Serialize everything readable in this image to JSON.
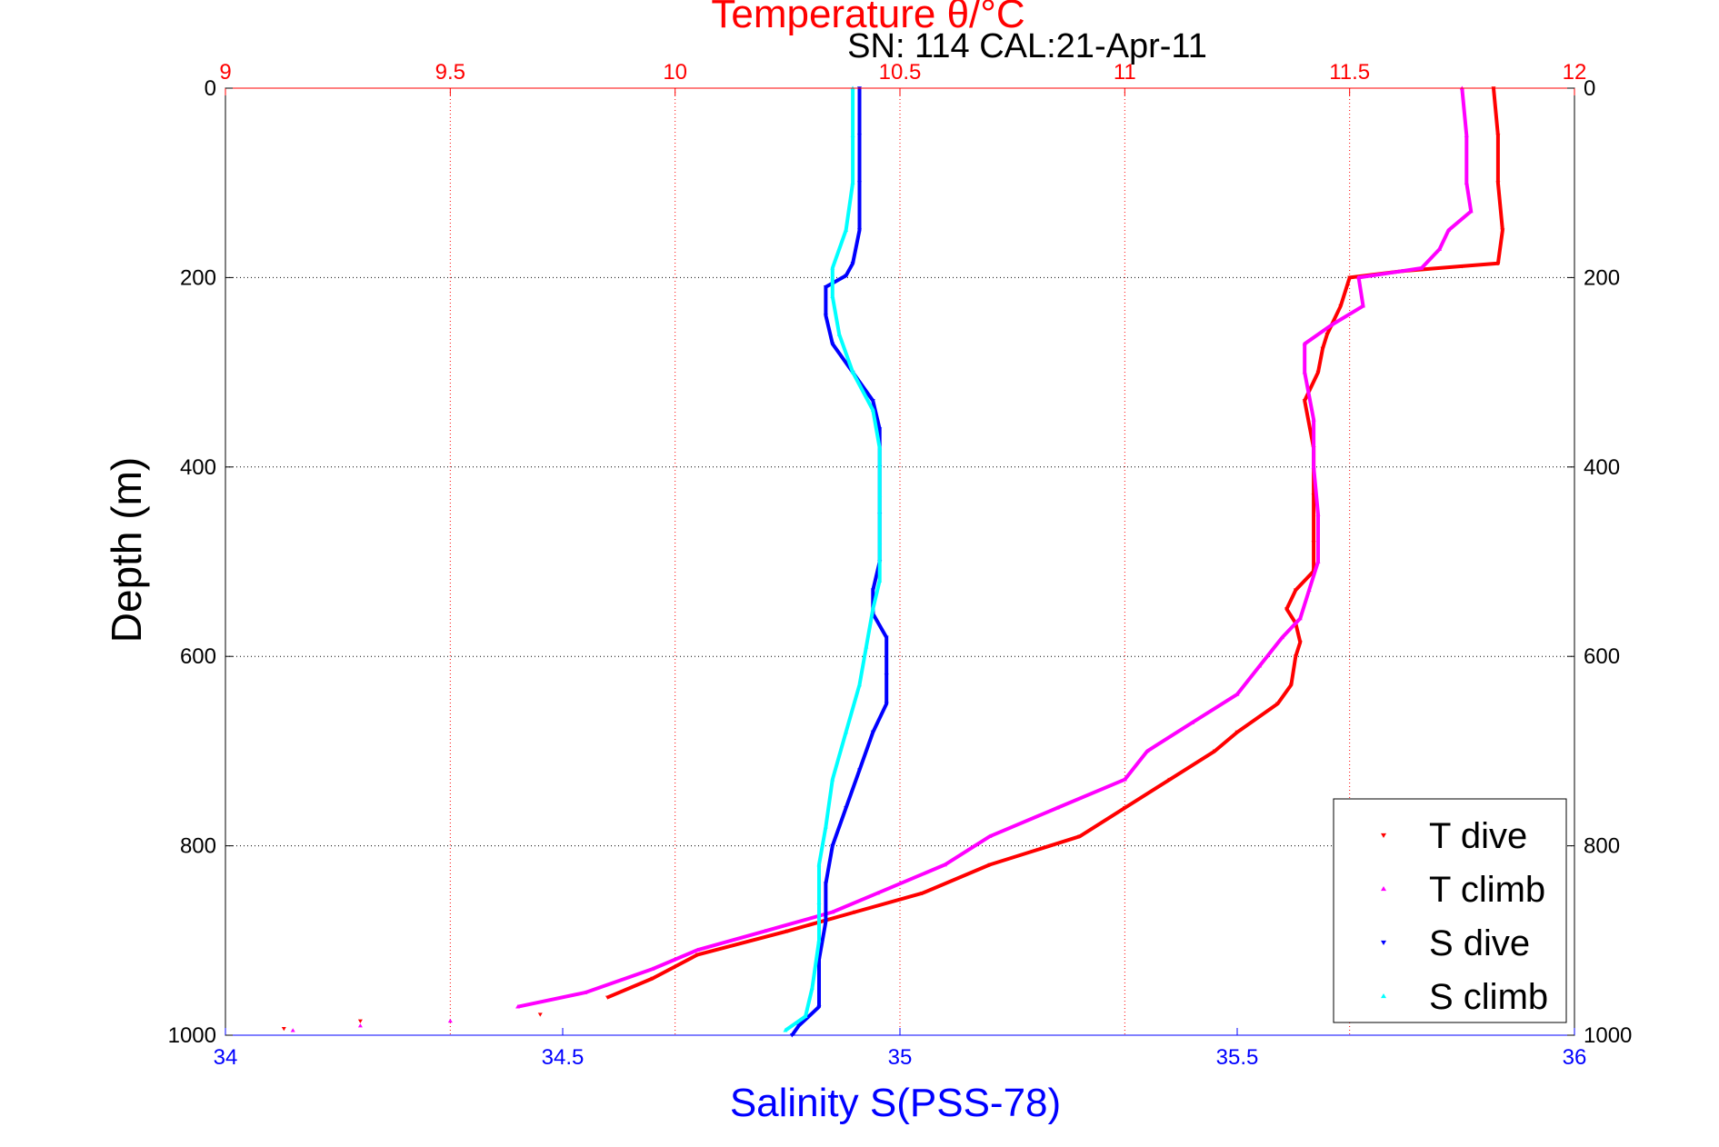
{
  "chart_data": {
    "type": "scatter",
    "title": "Temperature θ/°C",
    "subtitle": "SN: 114  CAL:21-Apr-11",
    "ylabel": "Depth (m)",
    "xlabel_bottom": "Salinity S(PSS-78)",
    "top_axis": {
      "label": "Temperature θ/°C",
      "range": [
        9,
        12
      ],
      "ticks": [
        "9",
        "9.5",
        "10",
        "10.5",
        "11",
        "11.5",
        "12"
      ],
      "color": "#ff0000"
    },
    "bottom_axis": {
      "label": "Salinity S(PSS-78)",
      "range": [
        34,
        36
      ],
      "ticks": [
        "34",
        "34.5",
        "35",
        "35.5",
        "36"
      ],
      "color": "#0000ff"
    },
    "y_axis": {
      "range": [
        0,
        1000
      ],
      "reversed": true,
      "ticks": [
        "0",
        "200",
        "400",
        "600",
        "800",
        "1000"
      ]
    },
    "grid": true,
    "legend_position": "bottom-right",
    "series": [
      {
        "name": "T dive",
        "axis": "top",
        "color": "#ff0000",
        "marker": "triangle-down",
        "points": [
          [
            11.82,
            0
          ],
          [
            11.83,
            50
          ],
          [
            11.83,
            100
          ],
          [
            11.84,
            150
          ],
          [
            11.83,
            185
          ],
          [
            11.75,
            188
          ],
          [
            11.62,
            193
          ],
          [
            11.5,
            200
          ],
          [
            11.48,
            230
          ],
          [
            11.45,
            260
          ],
          [
            11.44,
            275
          ],
          [
            11.43,
            300
          ],
          [
            11.41,
            320
          ],
          [
            11.4,
            330
          ],
          [
            11.42,
            380
          ],
          [
            11.42,
            430
          ],
          [
            11.42,
            480
          ],
          [
            11.42,
            510
          ],
          [
            11.38,
            530
          ],
          [
            11.36,
            550
          ],
          [
            11.38,
            565
          ],
          [
            11.39,
            585
          ],
          [
            11.38,
            600
          ],
          [
            11.37,
            630
          ],
          [
            11.34,
            650
          ],
          [
            11.25,
            680
          ],
          [
            11.2,
            700
          ],
          [
            11.1,
            730
          ],
          [
            11.0,
            760
          ],
          [
            10.9,
            790
          ],
          [
            10.7,
            820
          ],
          [
            10.55,
            850
          ],
          [
            10.4,
            870
          ],
          [
            10.25,
            890
          ],
          [
            10.05,
            915
          ],
          [
            9.95,
            940
          ],
          [
            9.85,
            960
          ],
          [
            9.7,
            978
          ],
          [
            9.3,
            985
          ],
          [
            9.13,
            993
          ]
        ]
      },
      {
        "name": "T climb",
        "axis": "top",
        "color": "#ff00ff",
        "marker": "triangle-up",
        "points": [
          [
            11.75,
            0
          ],
          [
            11.76,
            50
          ],
          [
            11.76,
            100
          ],
          [
            11.77,
            130
          ],
          [
            11.72,
            150
          ],
          [
            11.7,
            170
          ],
          [
            11.66,
            190
          ],
          [
            11.52,
            200
          ],
          [
            11.53,
            230
          ],
          [
            11.46,
            250
          ],
          [
            11.4,
            270
          ],
          [
            11.4,
            300
          ],
          [
            11.42,
            350
          ],
          [
            11.42,
            400
          ],
          [
            11.43,
            450
          ],
          [
            11.43,
            500
          ],
          [
            11.41,
            530
          ],
          [
            11.39,
            560
          ],
          [
            11.35,
            580
          ],
          [
            11.3,
            610
          ],
          [
            11.25,
            640
          ],
          [
            11.15,
            670
          ],
          [
            11.05,
            700
          ],
          [
            11.0,
            730
          ],
          [
            10.85,
            760
          ],
          [
            10.7,
            790
          ],
          [
            10.6,
            820
          ],
          [
            10.45,
            850
          ],
          [
            10.35,
            870
          ],
          [
            10.2,
            890
          ],
          [
            10.05,
            910
          ],
          [
            9.95,
            930
          ],
          [
            9.8,
            955
          ],
          [
            9.65,
            970
          ],
          [
            9.5,
            985
          ],
          [
            9.3,
            990
          ],
          [
            9.15,
            995
          ]
        ]
      },
      {
        "name": "S dive",
        "axis": "bottom",
        "color": "#0000ff",
        "marker": "triangle-down",
        "points": [
          [
            34.94,
            0
          ],
          [
            34.94,
            50
          ],
          [
            34.94,
            100
          ],
          [
            34.94,
            150
          ],
          [
            34.93,
            185
          ],
          [
            34.92,
            198
          ],
          [
            34.89,
            210
          ],
          [
            34.89,
            240
          ],
          [
            34.9,
            270
          ],
          [
            34.93,
            300
          ],
          [
            34.96,
            330
          ],
          [
            34.97,
            360
          ],
          [
            34.97,
            400
          ],
          [
            34.97,
            450
          ],
          [
            34.97,
            500
          ],
          [
            34.96,
            530
          ],
          [
            34.96,
            555
          ],
          [
            34.98,
            580
          ],
          [
            34.98,
            620
          ],
          [
            34.98,
            650
          ],
          [
            34.96,
            680
          ],
          [
            34.94,
            720
          ],
          [
            34.92,
            760
          ],
          [
            34.9,
            800
          ],
          [
            34.89,
            840
          ],
          [
            34.89,
            880
          ],
          [
            34.88,
            920
          ],
          [
            34.88,
            970
          ],
          [
            34.85,
            990
          ],
          [
            34.84,
            1000
          ]
        ]
      },
      {
        "name": "S climb",
        "axis": "bottom",
        "color": "#00ffff",
        "marker": "triangle-up",
        "points": [
          [
            34.93,
            0
          ],
          [
            34.93,
            50
          ],
          [
            34.93,
            100
          ],
          [
            34.92,
            150
          ],
          [
            34.9,
            190
          ],
          [
            34.9,
            220
          ],
          [
            34.91,
            260
          ],
          [
            34.93,
            300
          ],
          [
            34.96,
            340
          ],
          [
            34.97,
            380
          ],
          [
            34.97,
            430
          ],
          [
            34.97,
            480
          ],
          [
            34.97,
            520
          ],
          [
            34.96,
            550
          ],
          [
            34.95,
            590
          ],
          [
            34.94,
            630
          ],
          [
            34.92,
            680
          ],
          [
            34.9,
            730
          ],
          [
            34.89,
            780
          ],
          [
            34.88,
            820
          ],
          [
            34.88,
            860
          ],
          [
            34.88,
            900
          ],
          [
            34.87,
            950
          ],
          [
            34.86,
            980
          ],
          [
            34.83,
            995
          ]
        ]
      }
    ]
  }
}
